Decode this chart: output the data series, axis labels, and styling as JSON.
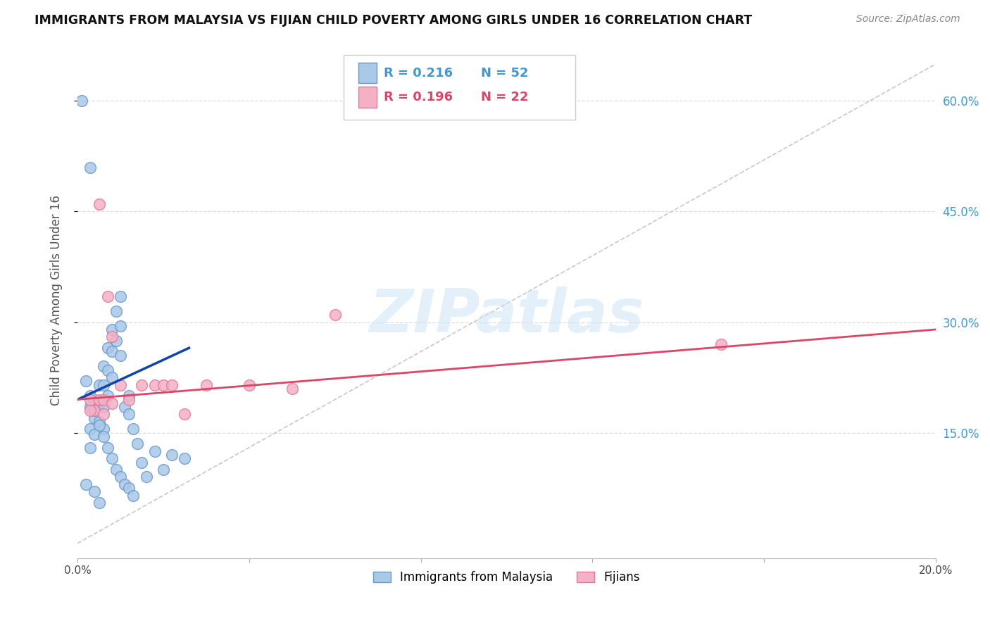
{
  "title": "IMMIGRANTS FROM MALAYSIA VS FIJIAN CHILD POVERTY AMONG GIRLS UNDER 16 CORRELATION CHART",
  "source": "Source: ZipAtlas.com",
  "ylabel": "Child Poverty Among Girls Under 16",
  "xlim": [
    0.0,
    0.2
  ],
  "ylim": [
    -0.02,
    0.68
  ],
  "blue_color": "#aac8e8",
  "blue_edge": "#6699cc",
  "pink_color": "#f5b0c5",
  "pink_edge": "#e07898",
  "trend_blue": "#1144aa",
  "trend_pink": "#dd4466",
  "diag_color": "#c8c8c8",
  "grid_color": "#dddddd",
  "blue_R": "0.216",
  "blue_N": "52",
  "pink_R": "0.196",
  "pink_N": "22",
  "rn_blue_color": "#4499cc",
  "rn_pink_color": "#dd4466",
  "watermark_color": "#cde5f5",
  "title_color": "#111111",
  "source_color": "#888888",
  "ylabel_color": "#555555",
  "tick_color": "#4499cc",
  "blue_scatter_x": [
    0.001,
    0.002,
    0.003,
    0.003,
    0.003,
    0.004,
    0.004,
    0.004,
    0.005,
    0.005,
    0.005,
    0.006,
    0.006,
    0.006,
    0.006,
    0.007,
    0.007,
    0.007,
    0.008,
    0.008,
    0.008,
    0.009,
    0.009,
    0.01,
    0.01,
    0.01,
    0.011,
    0.012,
    0.012,
    0.013,
    0.014,
    0.015,
    0.016,
    0.018,
    0.02,
    0.022,
    0.025,
    0.002,
    0.003,
    0.004,
    0.005,
    0.006,
    0.007,
    0.008,
    0.009,
    0.01,
    0.011,
    0.012,
    0.013,
    0.003,
    0.004,
    0.005
  ],
  "blue_scatter_y": [
    0.6,
    0.08,
    0.185,
    0.155,
    0.13,
    0.195,
    0.17,
    0.148,
    0.215,
    0.19,
    0.165,
    0.24,
    0.215,
    0.185,
    0.155,
    0.265,
    0.235,
    0.2,
    0.29,
    0.26,
    0.225,
    0.315,
    0.275,
    0.335,
    0.295,
    0.255,
    0.185,
    0.2,
    0.175,
    0.155,
    0.135,
    0.11,
    0.09,
    0.125,
    0.1,
    0.12,
    0.115,
    0.22,
    0.2,
    0.18,
    0.16,
    0.145,
    0.13,
    0.115,
    0.1,
    0.09,
    0.08,
    0.075,
    0.065,
    0.51,
    0.07,
    0.055
  ],
  "pink_scatter_x": [
    0.003,
    0.004,
    0.005,
    0.005,
    0.006,
    0.007,
    0.008,
    0.01,
    0.012,
    0.015,
    0.018,
    0.02,
    0.022,
    0.025,
    0.03,
    0.04,
    0.05,
    0.06,
    0.15,
    0.003,
    0.006,
    0.008
  ],
  "pink_scatter_y": [
    0.195,
    0.18,
    0.195,
    0.46,
    0.195,
    0.335,
    0.28,
    0.215,
    0.195,
    0.215,
    0.215,
    0.215,
    0.215,
    0.175,
    0.215,
    0.215,
    0.21,
    0.31,
    0.27,
    0.18,
    0.175,
    0.19
  ],
  "blue_trend_x": [
    0.0,
    0.026
  ],
  "blue_trend_y": [
    0.195,
    0.265
  ],
  "pink_trend_x": [
    0.0,
    0.2
  ],
  "pink_trend_y": [
    0.195,
    0.29
  ],
  "right_yticks": [
    0.15,
    0.3,
    0.45,
    0.6
  ],
  "right_ytick_labels": [
    "15.0%",
    "30.0%",
    "45.0%",
    "60.0%"
  ],
  "bottom_xticks": [
    0.0,
    0.04,
    0.08,
    0.12,
    0.16,
    0.2
  ],
  "bottom_xtick_labels": [
    "0.0%",
    "",
    "",
    "",
    "",
    "20.0%"
  ]
}
